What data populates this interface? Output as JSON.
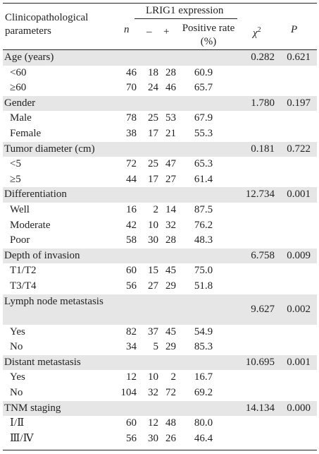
{
  "header": {
    "col1": "Clinicopathological parameters",
    "group": "LRIG1 expression",
    "n": "n",
    "neg": "–",
    "pos": "+",
    "rate": "Positive rate (%)",
    "chi": "χ",
    "chi_sup": "2",
    "p": "P"
  },
  "groups": [
    {
      "label": "Age (years)",
      "chi": "0.282",
      "p": "0.621",
      "rows": [
        {
          "label": "<60",
          "n": "46",
          "neg": "18",
          "pos": "28",
          "rate": "60.9"
        },
        {
          "label": "≥60",
          "n": "70",
          "neg": "24",
          "pos": "46",
          "rate": "65.7"
        }
      ]
    },
    {
      "label": "Gender",
      "chi": "1.780",
      "p": "0.197",
      "rows": [
        {
          "label": "Male",
          "n": "78",
          "neg": "25",
          "pos": "53",
          "rate": "67.9"
        },
        {
          "label": "Female",
          "n": "38",
          "neg": "17",
          "pos": "21",
          "rate": "55.3"
        }
      ]
    },
    {
      "label": "Tumor diameter (cm)",
      "chi": "0.181",
      "p": "0.722",
      "rows": [
        {
          "label": "<5",
          "n": "72",
          "neg": "25",
          "pos": "47",
          "rate": "65.3"
        },
        {
          "label": "≥5",
          "n": "44",
          "neg": "17",
          "pos": "27",
          "rate": "61.4"
        }
      ]
    },
    {
      "label": "Differentiation",
      "chi": "12.734",
      "p": "0.001",
      "rows": [
        {
          "label": "Well",
          "n": "16",
          "neg": "2",
          "pos": "14",
          "rate": "87.5"
        },
        {
          "label": "Moderate",
          "n": "42",
          "neg": "10",
          "pos": "32",
          "rate": "76.2"
        },
        {
          "label": "Poor",
          "n": "58",
          "neg": "30",
          "pos": "28",
          "rate": "48.3"
        }
      ]
    },
    {
      "label": "Depth of invasion",
      "chi": "6.758",
      "p": "0.009",
      "rows": [
        {
          "label": "T1/T2",
          "n": "60",
          "neg": "15",
          "pos": "45",
          "rate": "75.0"
        },
        {
          "label": "T3/T4",
          "n": "56",
          "neg": "27",
          "pos": "29",
          "rate": "51.8"
        }
      ]
    },
    {
      "label": "Lymph node metastasis",
      "chi": "9.627",
      "p": "0.002",
      "rows": [
        {
          "label": "Yes",
          "n": "82",
          "neg": "37",
          "pos": "45",
          "rate": "54.9"
        },
        {
          "label": "No",
          "n": "34",
          "neg": "5",
          "pos": "29",
          "rate": "85.3"
        }
      ]
    },
    {
      "label": "Distant metastasis",
      "chi": "10.695",
      "p": "0.001",
      "rows": [
        {
          "label": "Yes",
          "n": "12",
          "neg": "10",
          "pos": "2",
          "rate": "16.7"
        },
        {
          "label": "No",
          "n": "104",
          "neg": "32",
          "pos": "72",
          "rate": "69.2"
        }
      ]
    },
    {
      "label": "TNM staging",
      "chi": "14.134",
      "p": "0.000",
      "rows": [
        {
          "label": "Ⅰ/Ⅱ",
          "n": "60",
          "neg": "12",
          "pos": "48",
          "rate": "80.0"
        },
        {
          "label": "Ⅲ/Ⅳ",
          "n": "56",
          "neg": "30",
          "pos": "26",
          "rate": "46.4"
        }
      ]
    }
  ],
  "colors": {
    "shade": "#e6e6e6",
    "rule": "#222222"
  }
}
